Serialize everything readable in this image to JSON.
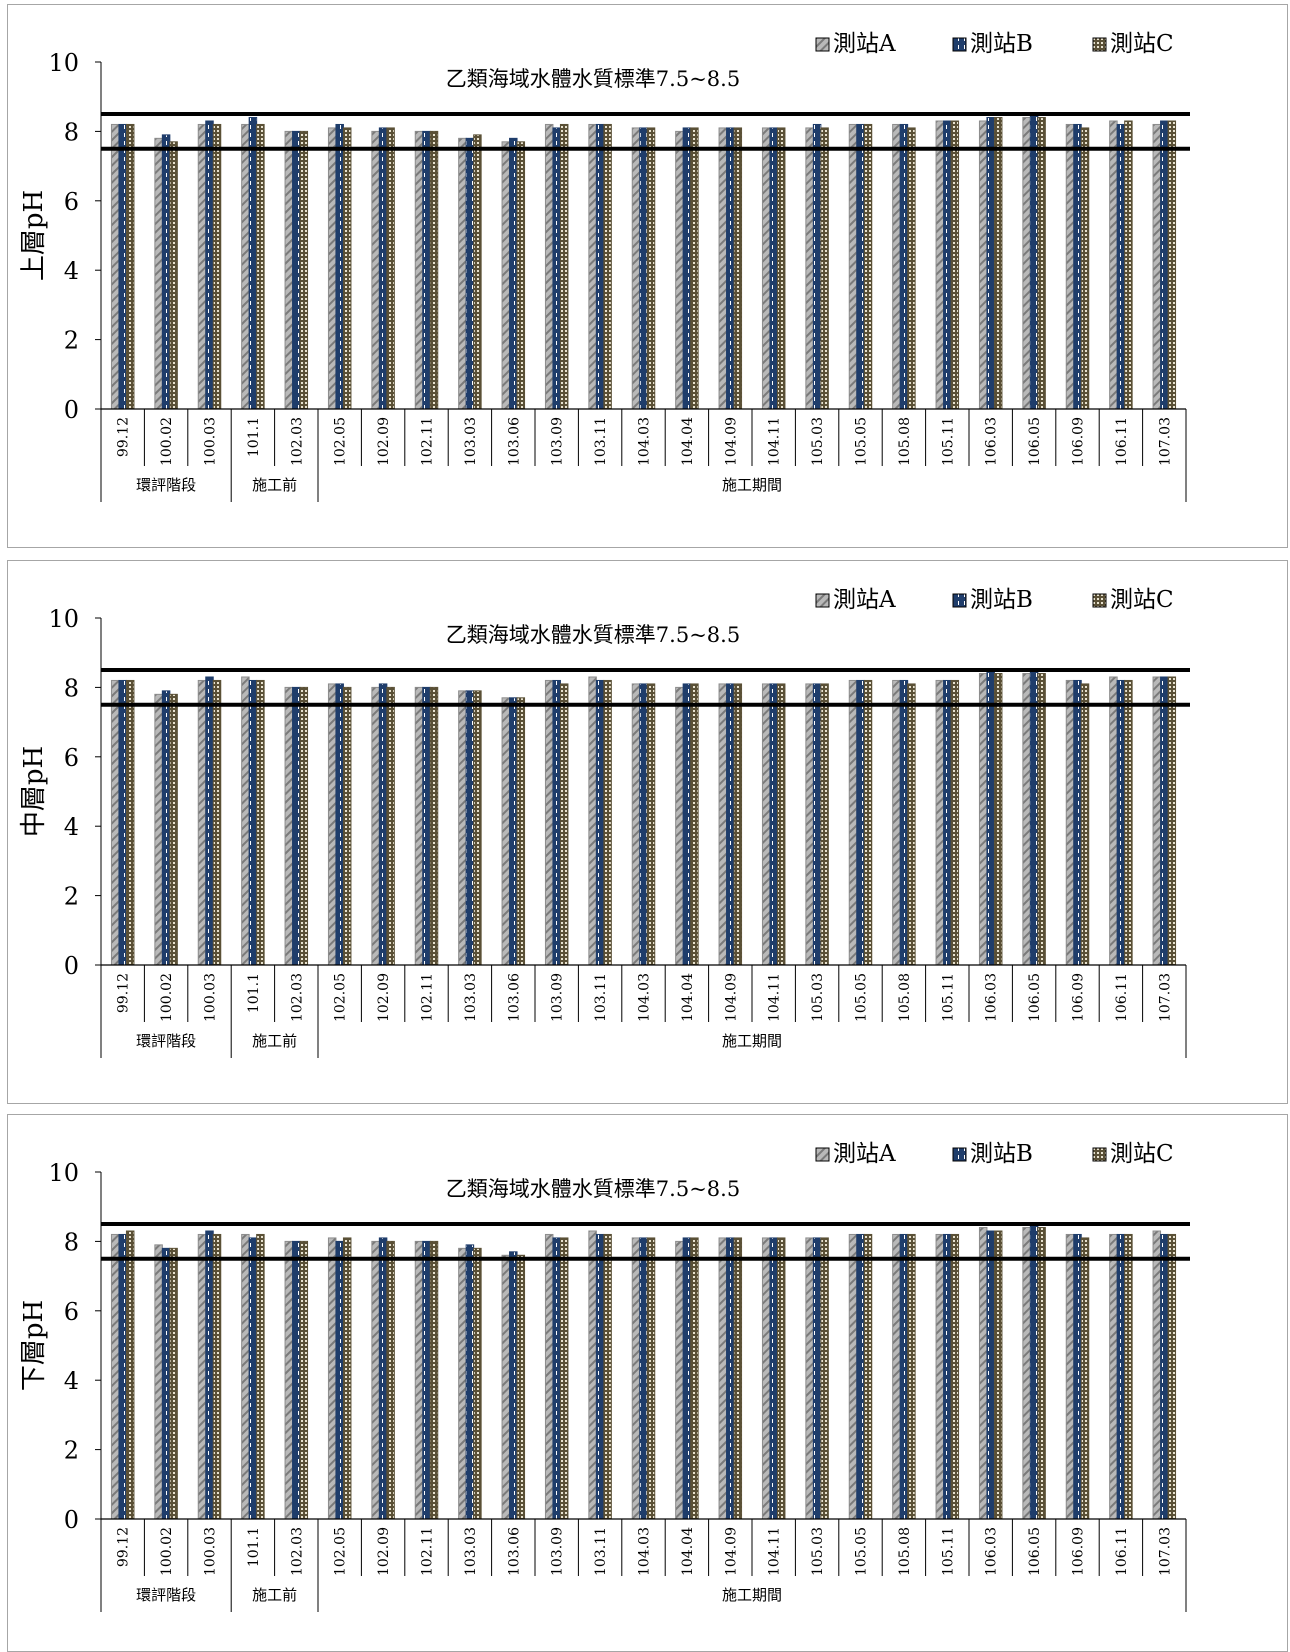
{
  "colors": {
    "stationA": "#8c8c8c",
    "stationB": "#1f3d6b",
    "stationC": "#5a5036",
    "standard_line": "#000000"
  },
  "chart_data": [
    {
      "type": "bar",
      "ylabel": "上層pH",
      "ylim": [
        0,
        10
      ],
      "yticks": [
        0,
        2,
        4,
        6,
        8,
        10
      ],
      "annotation": "乙類海域水體水質標準7.5~8.5",
      "standard_lines": [
        7.5,
        8.5
      ],
      "legend_position": "top-right",
      "categories": [
        "99.12",
        "100.02",
        "100.03",
        "101.1",
        "102.03",
        "102.05",
        "102.09",
        "102.11",
        "103.03",
        "103.06",
        "103.09",
        "103.11",
        "104.03",
        "104.04",
        "104.09",
        "104.11",
        "105.03",
        "105.05",
        "105.08",
        "105.11",
        "106.03",
        "106.05",
        "106.09",
        "106.11",
        "107.03"
      ],
      "groups": [
        {
          "label": "環評階段",
          "start": 0,
          "end": 2
        },
        {
          "label": "施工前",
          "start": 3,
          "end": 4
        },
        {
          "label": "施工期間",
          "start": 5,
          "end": 24
        }
      ],
      "series": [
        {
          "name": "測站A",
          "values": [
            8.2,
            7.8,
            8.2,
            8.2,
            8.0,
            8.1,
            8.0,
            8.0,
            7.8,
            7.7,
            8.2,
            8.2,
            8.1,
            8.0,
            8.1,
            8.1,
            8.1,
            8.2,
            8.2,
            8.3,
            8.3,
            8.4,
            8.2,
            8.3,
            8.2
          ]
        },
        {
          "name": "測站B",
          "values": [
            8.2,
            7.9,
            8.3,
            8.4,
            8.0,
            8.2,
            8.1,
            8.0,
            7.8,
            7.8,
            8.1,
            8.2,
            8.1,
            8.1,
            8.1,
            8.1,
            8.2,
            8.2,
            8.2,
            8.3,
            8.4,
            8.5,
            8.2,
            8.2,
            8.3
          ]
        },
        {
          "name": "測站C",
          "values": [
            8.2,
            7.7,
            8.2,
            8.2,
            8.0,
            8.1,
            8.1,
            8.0,
            7.9,
            7.7,
            8.2,
            8.2,
            8.1,
            8.1,
            8.1,
            8.1,
            8.1,
            8.2,
            8.1,
            8.3,
            8.4,
            8.4,
            8.1,
            8.3,
            8.3
          ]
        }
      ]
    },
    {
      "type": "bar",
      "ylabel": "中層pH",
      "ylim": [
        0,
        10
      ],
      "yticks": [
        0,
        2,
        4,
        6,
        8,
        10
      ],
      "annotation": "乙類海域水體水質標準7.5~8.5",
      "standard_lines": [
        7.5,
        8.5
      ],
      "legend_position": "top-right",
      "categories": [
        "99.12",
        "100.02",
        "100.03",
        "101.1",
        "102.03",
        "102.05",
        "102.09",
        "102.11",
        "103.03",
        "103.06",
        "103.09",
        "103.11",
        "104.03",
        "104.04",
        "104.09",
        "104.11",
        "105.03",
        "105.05",
        "105.08",
        "105.11",
        "106.03",
        "106.05",
        "106.09",
        "106.11",
        "107.03"
      ],
      "groups": [
        {
          "label": "環評階段",
          "start": 0,
          "end": 2
        },
        {
          "label": "施工前",
          "start": 3,
          "end": 4
        },
        {
          "label": "施工期間",
          "start": 5,
          "end": 24
        }
      ],
      "series": [
        {
          "name": "測站A",
          "values": [
            8.2,
            7.8,
            8.2,
            8.3,
            8.0,
            8.1,
            8.0,
            8.0,
            7.9,
            7.7,
            8.2,
            8.3,
            8.1,
            8.0,
            8.1,
            8.1,
            8.1,
            8.2,
            8.2,
            8.2,
            8.4,
            8.4,
            8.2,
            8.3,
            8.3
          ]
        },
        {
          "name": "測站B",
          "values": [
            8.2,
            7.9,
            8.3,
            8.2,
            8.0,
            8.1,
            8.1,
            8.0,
            7.9,
            7.7,
            8.2,
            8.2,
            8.1,
            8.1,
            8.1,
            8.1,
            8.1,
            8.2,
            8.2,
            8.2,
            8.5,
            8.5,
            8.2,
            8.2,
            8.3
          ]
        },
        {
          "name": "測站C",
          "values": [
            8.2,
            7.8,
            8.2,
            8.2,
            8.0,
            8.0,
            8.0,
            8.0,
            7.9,
            7.7,
            8.1,
            8.2,
            8.1,
            8.1,
            8.1,
            8.1,
            8.1,
            8.2,
            8.1,
            8.2,
            8.4,
            8.4,
            8.1,
            8.2,
            8.3
          ]
        }
      ]
    },
    {
      "type": "bar",
      "ylabel": "下層pH",
      "ylim": [
        0,
        10
      ],
      "yticks": [
        0,
        2,
        4,
        6,
        8,
        10
      ],
      "annotation": "乙類海域水體水質標準7.5~8.5",
      "standard_lines": [
        7.5,
        8.5
      ],
      "legend_position": "top-right",
      "categories": [
        "99.12",
        "100.02",
        "100.03",
        "101.1",
        "102.03",
        "102.05",
        "102.09",
        "102.11",
        "103.03",
        "103.06",
        "103.09",
        "103.11",
        "104.03",
        "104.04",
        "104.09",
        "104.11",
        "105.03",
        "105.05",
        "105.08",
        "105.11",
        "106.03",
        "106.05",
        "106.09",
        "106.11",
        "107.03"
      ],
      "groups": [
        {
          "label": "環評階段",
          "start": 0,
          "end": 2
        },
        {
          "label": "施工前",
          "start": 3,
          "end": 4
        },
        {
          "label": "施工期間",
          "start": 5,
          "end": 24
        }
      ],
      "series": [
        {
          "name": "測站A",
          "values": [
            8.2,
            7.9,
            8.2,
            8.2,
            8.0,
            8.1,
            8.0,
            8.0,
            7.8,
            7.6,
            8.2,
            8.3,
            8.1,
            8.0,
            8.1,
            8.1,
            8.1,
            8.2,
            8.2,
            8.2,
            8.4,
            8.4,
            8.2,
            8.2,
            8.3
          ]
        },
        {
          "name": "測站B",
          "values": [
            8.2,
            7.8,
            8.3,
            8.1,
            8.0,
            8.0,
            8.1,
            8.0,
            7.9,
            7.7,
            8.1,
            8.2,
            8.1,
            8.1,
            8.1,
            8.1,
            8.1,
            8.2,
            8.2,
            8.2,
            8.3,
            8.5,
            8.2,
            8.2,
            8.2
          ]
        },
        {
          "name": "測站C",
          "values": [
            8.3,
            7.8,
            8.2,
            8.2,
            8.0,
            8.1,
            8.0,
            8.0,
            7.8,
            7.6,
            8.1,
            8.2,
            8.1,
            8.1,
            8.1,
            8.1,
            8.1,
            8.2,
            8.2,
            8.2,
            8.3,
            8.4,
            8.1,
            8.2,
            8.2
          ]
        }
      ]
    }
  ]
}
